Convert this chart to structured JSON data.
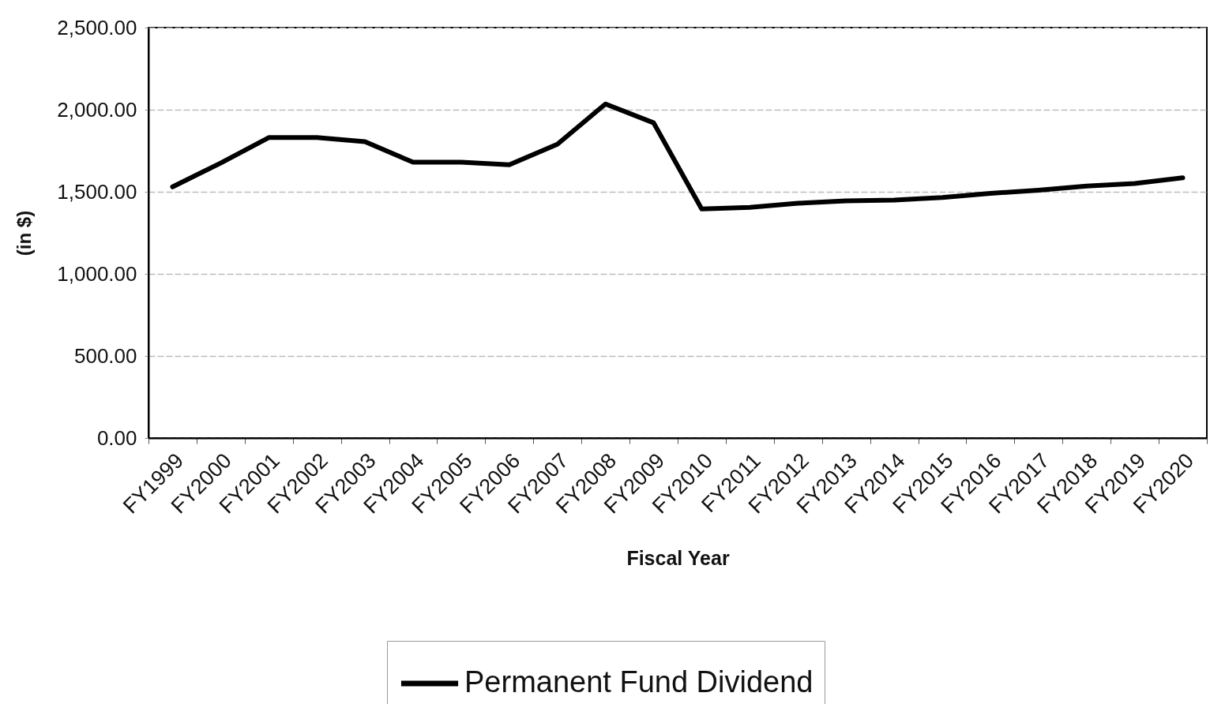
{
  "chart_data": {
    "type": "line",
    "xlabel": "Fiscal Year",
    "ylabel": "(in $)",
    "categories": [
      "FY1999",
      "FY2000",
      "FY2001",
      "FY2002",
      "FY2003",
      "FY2004",
      "FY2005",
      "FY2006",
      "FY2007",
      "FY2008",
      "FY2009",
      "FY2010",
      "FY2011",
      "FY2012",
      "FY2013",
      "FY2014",
      "FY2015",
      "FY2016",
      "FY2017",
      "FY2018",
      "FY2019",
      "FY2020"
    ],
    "series": [
      {
        "name": "Permanent Fund Dividend",
        "color": "#000000",
        "values": [
          1530,
          1675,
          1830,
          1830,
          1805,
          1680,
          1680,
          1665,
          1790,
          2035,
          1920,
          1395,
          1405,
          1430,
          1445,
          1450,
          1465,
          1490,
          1510,
          1535,
          1550,
          1585
        ]
      }
    ],
    "ylim": [
      0,
      2500
    ],
    "yticks": [
      {
        "value": 0,
        "label": "0.00"
      },
      {
        "value": 500,
        "label": "500.00"
      },
      {
        "value": 1000,
        "label": "1,000.00"
      },
      {
        "value": 1500,
        "label": "1,500.00"
      },
      {
        "value": 2000,
        "label": "2,000.00"
      },
      {
        "value": 2500,
        "label": "2,500.00"
      }
    ],
    "grid": "y",
    "legend": "bottom",
    "line_style": "solid"
  }
}
